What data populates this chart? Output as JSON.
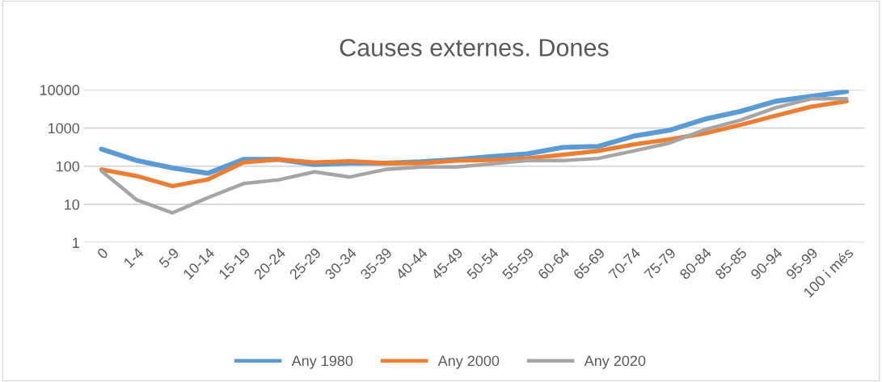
{
  "chart_data": {
    "type": "line",
    "title": "Causes externes. Dones",
    "categories": [
      "0",
      "1-4",
      "5-9",
      "10-14",
      "15-19",
      "20-24",
      "25-29",
      "30-34",
      "35-39",
      "40-44",
      "45-49",
      "50-54",
      "55-59",
      "60-64",
      "65-69",
      "70-74",
      "75-79",
      "80-84",
      "85-85",
      "90-94",
      "95-99",
      "100 i més"
    ],
    "series": [
      {
        "name": "Any 1980",
        "color": "#5b9bd5",
        "values": [
          280,
          140,
          90,
          65,
          150,
          150,
          110,
          120,
          120,
          130,
          150,
          180,
          210,
          310,
          330,
          610,
          870,
          1700,
          2700,
          5000,
          6700,
          9000
        ]
      },
      {
        "name": "Any 2000",
        "color": "#ed7d31",
        "values": [
          82,
          55,
          30,
          45,
          125,
          150,
          125,
          135,
          120,
          120,
          140,
          145,
          160,
          200,
          250,
          370,
          500,
          720,
          1200,
          2100,
          3600,
          5000
        ]
      },
      {
        "name": "Any 2020",
        "color": "#a5a5a5",
        "values": [
          75,
          13,
          6,
          15,
          35,
          44,
          71,
          52,
          82,
          95,
          95,
          115,
          140,
          140,
          160,
          250,
          400,
          900,
          1600,
          3400,
          5800,
          5800
        ]
      }
    ],
    "log": "y",
    "ylim": [
      1,
      10000
    ],
    "yticks": [
      1,
      10,
      100,
      1000,
      10000
    ],
    "grid": "y",
    "legend": "bottom",
    "marker": "none",
    "line_style": "solid"
  }
}
